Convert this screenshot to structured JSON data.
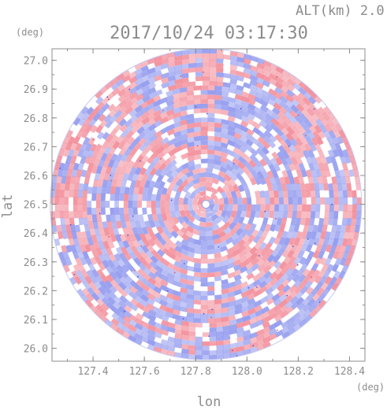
{
  "header": {
    "altitude_label": "ALT(km) 2.0",
    "timestamp": "2017/10/24 03:17:30"
  },
  "chart_data": {
    "type": "heatmap",
    "title": "2017/10/24 03:17:30",
    "subtitle": "ALT(km) 2.0",
    "xlabel": "lon",
    "ylabel": "lat",
    "x_unit": "(deg)",
    "y_unit": "(deg)",
    "xlim": [
      127.24,
      128.46
    ],
    "ylim": [
      25.955,
      27.04
    ],
    "x_ticks": [
      127.4,
      127.6,
      127.8,
      128.0,
      128.2,
      128.4
    ],
    "x_tick_labels": [
      "127.4",
      "127.6",
      "127.8",
      "128.0",
      "128.2",
      "128.4"
    ],
    "y_ticks": [
      26.0,
      26.1,
      26.2,
      26.3,
      26.4,
      26.5,
      26.6,
      26.7,
      26.8,
      26.9,
      27.0
    ],
    "y_tick_labels": [
      "26.0",
      "26.1",
      "26.2",
      "26.3",
      "26.4",
      "26.5",
      "26.6",
      "26.7",
      "26.8",
      "26.9",
      "27.0"
    ],
    "center": {
      "lon": 127.84,
      "lat": 26.5
    },
    "radius_lat_deg": 0.54,
    "pattern": "radial Doppler-style field of alternating positive (red) and negative (blue) values in concentric arcs",
    "colors": {
      "positive": "#f4a0a8",
      "negative": "#a8b0f0",
      "neutral": "#ffffff",
      "axis": "#8c8c8c"
    }
  }
}
